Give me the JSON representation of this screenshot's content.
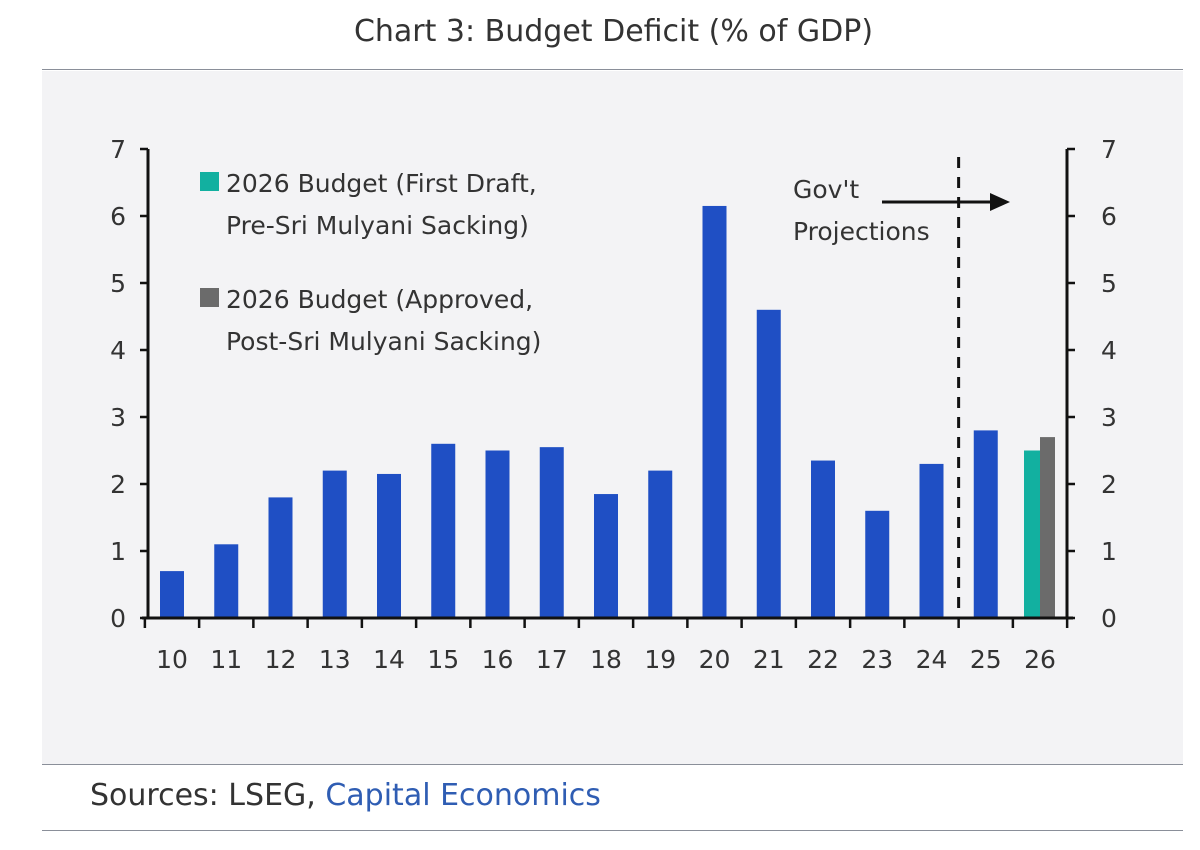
{
  "title": "Chart 3: Budget Deficit (% of GDP)",
  "sources": {
    "prefix": "Sources: LSEG, ",
    "link": "Capital Economics"
  },
  "colors": {
    "main": "#1f4fc4",
    "first_draft": "#12b0a0",
    "approved": "#6b6b6b"
  },
  "chart_data": {
    "type": "bar",
    "title": "Chart 3: Budget Deficit (% of GDP)",
    "categories": [
      "10",
      "11",
      "12",
      "13",
      "14",
      "15",
      "16",
      "17",
      "18",
      "19",
      "20",
      "21",
      "22",
      "23",
      "24",
      "25",
      "26"
    ],
    "values": [
      0.7,
      1.1,
      1.8,
      2.2,
      2.15,
      2.6,
      2.5,
      2.55,
      1.85,
      2.2,
      6.15,
      4.6,
      2.35,
      1.6,
      2.3,
      2.8,
      null
    ],
    "series_2026": [
      {
        "name": "2026 Budget (First Draft, Pre-Sri Mulyani Sacking)",
        "value": 2.5,
        "color": "#12b0a0"
      },
      {
        "name": "2026 Budget (Approved, Post-Sri Mulyani Sacking)",
        "value": 2.7,
        "color": "#6b6b6b"
      }
    ],
    "legend": [
      {
        "line1": "2026 Budget (First Draft,",
        "line2": "Pre-Sri Mulyani Sacking)",
        "color": "#12b0a0"
      },
      {
        "line1": "2026 Budget (Approved,",
        "line2": "Post-Sri Mulyani Sacking)",
        "color": "#6b6b6b"
      }
    ],
    "legend_position": "top-left",
    "annotation": {
      "line1": "Gov't",
      "line2": "Projections"
    },
    "ylim": [
      0,
      7
    ],
    "yticks": [
      "0",
      "1",
      "2",
      "3",
      "4",
      "5",
      "6",
      "7"
    ],
    "xlabel": "",
    "ylabel": "",
    "grid": false
  }
}
